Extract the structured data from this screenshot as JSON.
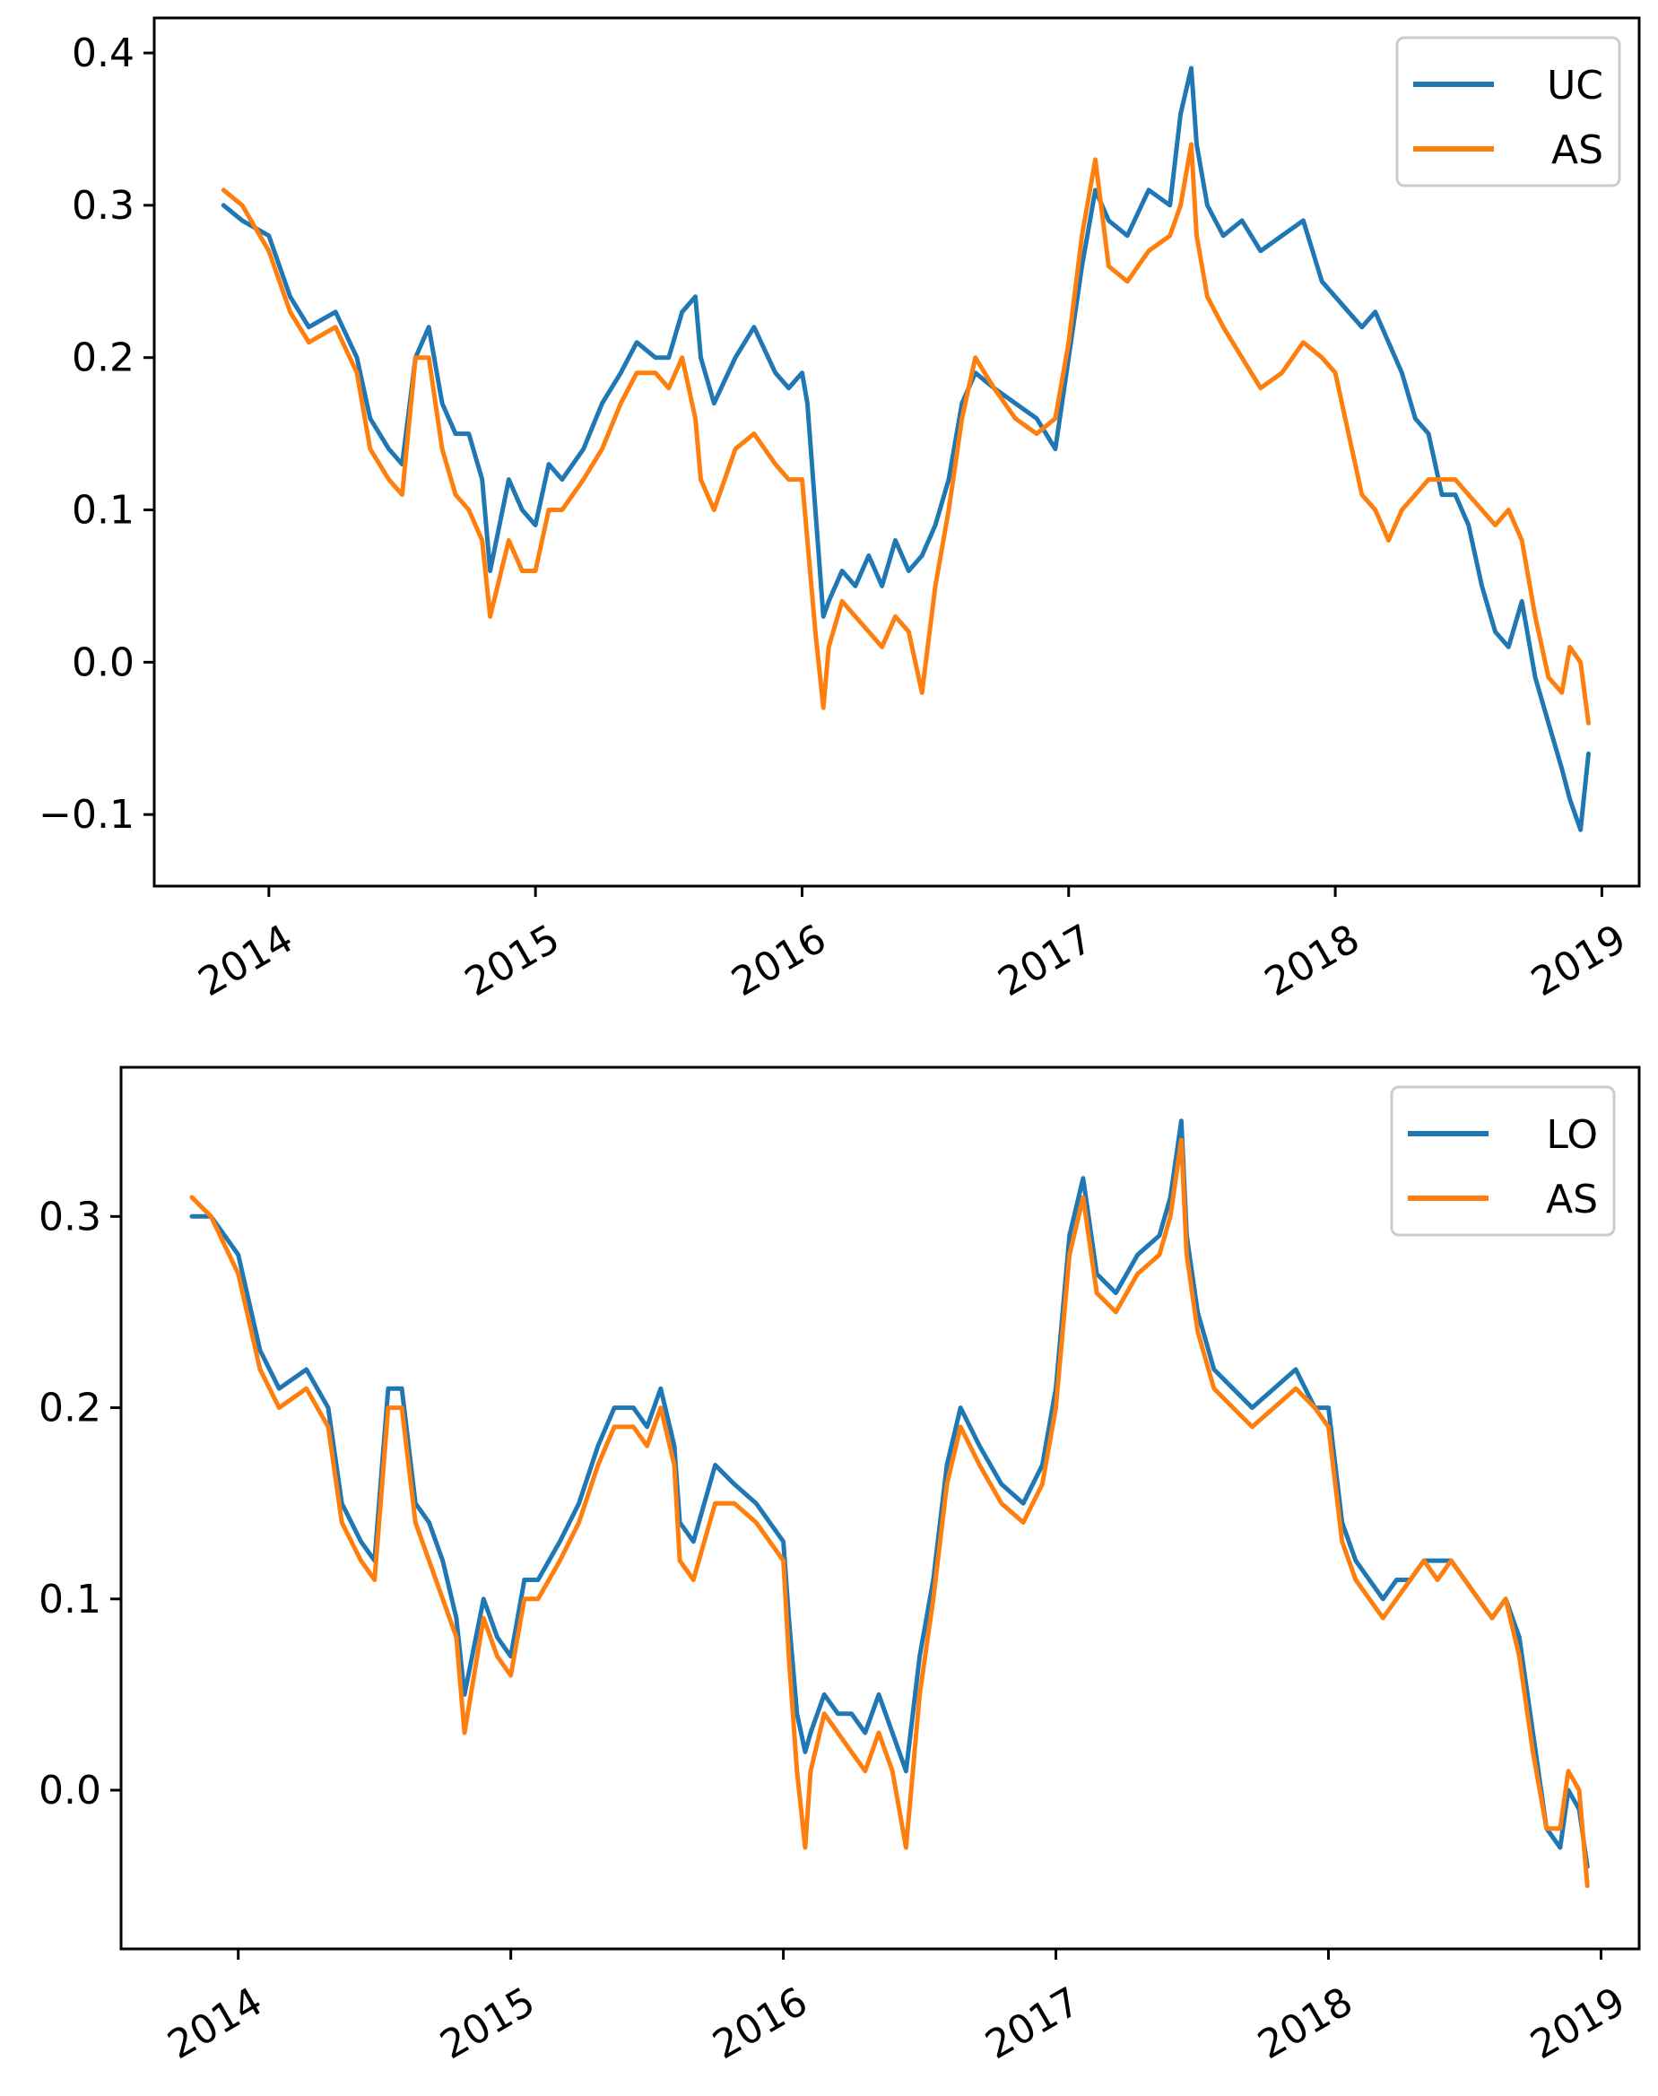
{
  "chart_data": [
    {
      "type": "line",
      "title": "",
      "xlabel": "",
      "ylabel": "",
      "xlim": [
        2013.57,
        2019.14
      ],
      "ylim": [
        -0.147,
        0.423
      ],
      "xticks": [
        2014,
        2015,
        2016,
        2017,
        2018,
        2019
      ],
      "xtick_labels": [
        "2014",
        "2015",
        "2016",
        "2017",
        "2018",
        "2019"
      ],
      "yticks": [
        -0.1,
        0.0,
        0.1,
        0.2,
        0.3,
        0.4
      ],
      "ytick_labels": [
        "−0.1",
        "0.0",
        "0.1",
        "0.2",
        "0.3",
        "0.4"
      ],
      "legend": "top-right",
      "series": [
        {
          "name": "UC",
          "color": "#1f77b4",
          "x": [
            2013.83,
            2013.9,
            2014.0,
            2014.08,
            2014.15,
            2014.25,
            2014.33,
            2014.38,
            2014.45,
            2014.5,
            2014.55,
            2014.6,
            2014.65,
            2014.7,
            2014.75,
            2014.8,
            2014.83,
            2014.9,
            2014.95,
            2015.0,
            2015.05,
            2015.1,
            2015.18,
            2015.25,
            2015.32,
            2015.38,
            2015.45,
            2015.5,
            2015.55,
            2015.6,
            2015.62,
            2015.67,
            2015.75,
            2015.82,
            2015.9,
            2015.95,
            2016.0,
            2016.02,
            2016.05,
            2016.08,
            2016.1,
            2016.15,
            2016.2,
            2016.25,
            2016.3,
            2016.35,
            2016.4,
            2016.45,
            2016.5,
            2016.55,
            2016.6,
            2016.65,
            2016.72,
            2016.8,
            2016.88,
            2016.95,
            2017.0,
            2017.05,
            2017.1,
            2017.15,
            2017.22,
            2017.3,
            2017.38,
            2017.42,
            2017.46,
            2017.48,
            2017.52,
            2017.58,
            2017.65,
            2017.72,
            2017.8,
            2017.88,
            2017.95,
            2018.0,
            2018.05,
            2018.1,
            2018.15,
            2018.2,
            2018.25,
            2018.3,
            2018.35,
            2018.4,
            2018.45,
            2018.5,
            2018.55,
            2018.6,
            2018.65,
            2018.7,
            2018.75,
            2018.8,
            2018.85,
            2018.88,
            2018.92,
            2018.95
          ],
          "y": [
            0.3,
            0.29,
            0.28,
            0.24,
            0.22,
            0.23,
            0.2,
            0.16,
            0.14,
            0.13,
            0.2,
            0.22,
            0.17,
            0.15,
            0.15,
            0.12,
            0.06,
            0.12,
            0.1,
            0.09,
            0.13,
            0.12,
            0.14,
            0.17,
            0.19,
            0.21,
            0.2,
            0.2,
            0.23,
            0.24,
            0.2,
            0.17,
            0.2,
            0.22,
            0.19,
            0.18,
            0.19,
            0.17,
            0.1,
            0.03,
            0.04,
            0.06,
            0.05,
            0.07,
            0.05,
            0.08,
            0.06,
            0.07,
            0.09,
            0.12,
            0.17,
            0.19,
            0.18,
            0.17,
            0.16,
            0.14,
            0.2,
            0.26,
            0.31,
            0.29,
            0.28,
            0.31,
            0.3,
            0.36,
            0.39,
            0.34,
            0.3,
            0.28,
            0.29,
            0.27,
            0.28,
            0.29,
            0.25,
            0.24,
            0.23,
            0.22,
            0.23,
            0.21,
            0.19,
            0.16,
            0.15,
            0.11,
            0.11,
            0.09,
            0.05,
            0.02,
            0.01,
            0.04,
            -0.01,
            -0.04,
            -0.07,
            -0.09,
            -0.11,
            -0.06
          ]
        },
        {
          "name": "AS",
          "color": "#ff7f0e",
          "x": [
            2013.83,
            2013.9,
            2014.0,
            2014.08,
            2014.15,
            2014.25,
            2014.33,
            2014.38,
            2014.45,
            2014.5,
            2014.55,
            2014.6,
            2014.65,
            2014.7,
            2014.75,
            2014.8,
            2014.83,
            2014.9,
            2014.95,
            2015.0,
            2015.05,
            2015.1,
            2015.18,
            2015.25,
            2015.32,
            2015.38,
            2015.45,
            2015.5,
            2015.55,
            2015.6,
            2015.62,
            2015.67,
            2015.75,
            2015.82,
            2015.9,
            2015.95,
            2016.0,
            2016.02,
            2016.05,
            2016.08,
            2016.1,
            2016.15,
            2016.2,
            2016.25,
            2016.3,
            2016.35,
            2016.4,
            2016.45,
            2016.5,
            2016.55,
            2016.6,
            2016.65,
            2016.72,
            2016.8,
            2016.88,
            2016.95,
            2017.0,
            2017.05,
            2017.1,
            2017.15,
            2017.22,
            2017.3,
            2017.38,
            2017.42,
            2017.46,
            2017.48,
            2017.52,
            2017.58,
            2017.65,
            2017.72,
            2017.8,
            2017.88,
            2017.95,
            2018.0,
            2018.05,
            2018.1,
            2018.15,
            2018.2,
            2018.25,
            2018.3,
            2018.35,
            2018.4,
            2018.45,
            2018.5,
            2018.55,
            2018.6,
            2018.65,
            2018.7,
            2018.75,
            2018.8,
            2018.85,
            2018.88,
            2018.92,
            2018.95
          ],
          "y": [
            0.31,
            0.3,
            0.27,
            0.23,
            0.21,
            0.22,
            0.19,
            0.14,
            0.12,
            0.11,
            0.2,
            0.2,
            0.14,
            0.11,
            0.1,
            0.08,
            0.03,
            0.08,
            0.06,
            0.06,
            0.1,
            0.1,
            0.12,
            0.14,
            0.17,
            0.19,
            0.19,
            0.18,
            0.2,
            0.16,
            0.12,
            0.1,
            0.14,
            0.15,
            0.13,
            0.12,
            0.12,
            0.08,
            0.02,
            -0.03,
            0.01,
            0.04,
            0.03,
            0.02,
            0.01,
            0.03,
            0.02,
            -0.02,
            0.05,
            0.1,
            0.16,
            0.2,
            0.18,
            0.16,
            0.15,
            0.16,
            0.21,
            0.28,
            0.33,
            0.26,
            0.25,
            0.27,
            0.28,
            0.3,
            0.34,
            0.28,
            0.24,
            0.22,
            0.2,
            0.18,
            0.19,
            0.21,
            0.2,
            0.19,
            0.15,
            0.11,
            0.1,
            0.08,
            0.1,
            0.11,
            0.12,
            0.12,
            0.12,
            0.11,
            0.1,
            0.09,
            0.1,
            0.08,
            0.03,
            -0.01,
            -0.02,
            0.01,
            0.0,
            -0.04
          ]
        }
      ]
    },
    {
      "type": "line",
      "title": "",
      "xlabel": "",
      "ylabel": "",
      "xlim": [
        2013.57,
        2019.14
      ],
      "ylim": [
        -0.083,
        0.378
      ],
      "xticks": [
        2014,
        2015,
        2016,
        2017,
        2018,
        2019
      ],
      "xtick_labels": [
        "2014",
        "2015",
        "2016",
        "2017",
        "2018",
        "2019"
      ],
      "yticks": [
        0.0,
        0.1,
        0.2,
        0.3
      ],
      "ytick_labels": [
        "0.0",
        "0.1",
        "0.2",
        "0.3"
      ],
      "legend": "top-right",
      "series": [
        {
          "name": "LO",
          "color": "#1f77b4",
          "x": [
            2013.83,
            2013.9,
            2014.0,
            2014.08,
            2014.15,
            2014.25,
            2014.33,
            2014.38,
            2014.45,
            2014.5,
            2014.55,
            2014.6,
            2014.65,
            2014.7,
            2014.75,
            2014.8,
            2014.83,
            2014.9,
            2014.95,
            2015.0,
            2015.05,
            2015.1,
            2015.18,
            2015.25,
            2015.32,
            2015.38,
            2015.45,
            2015.5,
            2015.55,
            2015.6,
            2015.62,
            2015.67,
            2015.75,
            2015.82,
            2015.9,
            2015.95,
            2016.0,
            2016.02,
            2016.05,
            2016.08,
            2016.1,
            2016.15,
            2016.2,
            2016.25,
            2016.3,
            2016.35,
            2016.4,
            2016.45,
            2016.5,
            2016.55,
            2016.6,
            2016.65,
            2016.72,
            2016.8,
            2016.88,
            2016.95,
            2017.0,
            2017.05,
            2017.1,
            2017.15,
            2017.22,
            2017.3,
            2017.38,
            2017.42,
            2017.46,
            2017.48,
            2017.52,
            2017.58,
            2017.65,
            2017.72,
            2017.8,
            2017.88,
            2017.95,
            2018.0,
            2018.05,
            2018.1,
            2018.15,
            2018.2,
            2018.25,
            2018.3,
            2018.35,
            2018.4,
            2018.45,
            2018.5,
            2018.55,
            2018.6,
            2018.65,
            2018.7,
            2018.75,
            2018.8,
            2018.85,
            2018.88,
            2018.92,
            2018.95
          ],
          "y": [
            0.3,
            0.3,
            0.28,
            0.23,
            0.21,
            0.22,
            0.2,
            0.15,
            0.13,
            0.12,
            0.21,
            0.21,
            0.15,
            0.14,
            0.12,
            0.09,
            0.05,
            0.1,
            0.08,
            0.07,
            0.11,
            0.11,
            0.13,
            0.15,
            0.18,
            0.2,
            0.2,
            0.19,
            0.21,
            0.18,
            0.14,
            0.13,
            0.17,
            0.16,
            0.15,
            0.14,
            0.13,
            0.09,
            0.04,
            0.02,
            0.03,
            0.05,
            0.04,
            0.04,
            0.03,
            0.05,
            0.03,
            0.01,
            0.07,
            0.11,
            0.17,
            0.2,
            0.18,
            0.16,
            0.15,
            0.17,
            0.21,
            0.29,
            0.32,
            0.27,
            0.26,
            0.28,
            0.29,
            0.31,
            0.35,
            0.29,
            0.25,
            0.22,
            0.21,
            0.2,
            0.21,
            0.22,
            0.2,
            0.2,
            0.14,
            0.12,
            0.11,
            0.1,
            0.11,
            0.11,
            0.12,
            0.12,
            0.12,
            0.11,
            0.1,
            0.09,
            0.1,
            0.08,
            0.03,
            -0.02,
            -0.03,
            0.0,
            -0.01,
            -0.04
          ]
        },
        {
          "name": "AS",
          "color": "#ff7f0e",
          "x": [
            2013.83,
            2013.9,
            2014.0,
            2014.08,
            2014.15,
            2014.25,
            2014.33,
            2014.38,
            2014.45,
            2014.5,
            2014.55,
            2014.6,
            2014.65,
            2014.7,
            2014.75,
            2014.8,
            2014.83,
            2014.9,
            2014.95,
            2015.0,
            2015.05,
            2015.1,
            2015.18,
            2015.25,
            2015.32,
            2015.38,
            2015.45,
            2015.5,
            2015.55,
            2015.6,
            2015.62,
            2015.67,
            2015.75,
            2015.82,
            2015.9,
            2015.95,
            2016.0,
            2016.02,
            2016.05,
            2016.08,
            2016.1,
            2016.15,
            2016.2,
            2016.25,
            2016.3,
            2016.35,
            2016.4,
            2016.45,
            2016.5,
            2016.55,
            2016.6,
            2016.65,
            2016.72,
            2016.8,
            2016.88,
            2016.95,
            2017.0,
            2017.05,
            2017.1,
            2017.15,
            2017.22,
            2017.3,
            2017.38,
            2017.42,
            2017.46,
            2017.48,
            2017.52,
            2017.58,
            2017.65,
            2017.72,
            2017.8,
            2017.88,
            2017.95,
            2018.0,
            2018.05,
            2018.1,
            2018.15,
            2018.2,
            2018.25,
            2018.3,
            2018.35,
            2018.4,
            2018.45,
            2018.5,
            2018.55,
            2018.6,
            2018.65,
            2018.7,
            2018.75,
            2018.8,
            2018.85,
            2018.88,
            2018.92,
            2018.95
          ],
          "y": [
            0.31,
            0.3,
            0.27,
            0.22,
            0.2,
            0.21,
            0.19,
            0.14,
            0.12,
            0.11,
            0.2,
            0.2,
            0.14,
            0.12,
            0.1,
            0.08,
            0.03,
            0.09,
            0.07,
            0.06,
            0.1,
            0.1,
            0.12,
            0.14,
            0.17,
            0.19,
            0.19,
            0.18,
            0.2,
            0.17,
            0.12,
            0.11,
            0.15,
            0.15,
            0.14,
            0.13,
            0.12,
            0.07,
            0.01,
            -0.03,
            0.01,
            0.04,
            0.03,
            0.02,
            0.01,
            0.03,
            0.01,
            -0.03,
            0.05,
            0.1,
            0.16,
            0.19,
            0.17,
            0.15,
            0.14,
            0.16,
            0.2,
            0.28,
            0.31,
            0.26,
            0.25,
            0.27,
            0.28,
            0.3,
            0.34,
            0.28,
            0.24,
            0.21,
            0.2,
            0.19,
            0.2,
            0.21,
            0.2,
            0.19,
            0.13,
            0.11,
            0.1,
            0.09,
            0.1,
            0.11,
            0.12,
            0.11,
            0.12,
            0.11,
            0.1,
            0.09,
            0.1,
            0.07,
            0.02,
            -0.02,
            -0.02,
            0.01,
            0.0,
            -0.05
          ]
        }
      ]
    }
  ]
}
